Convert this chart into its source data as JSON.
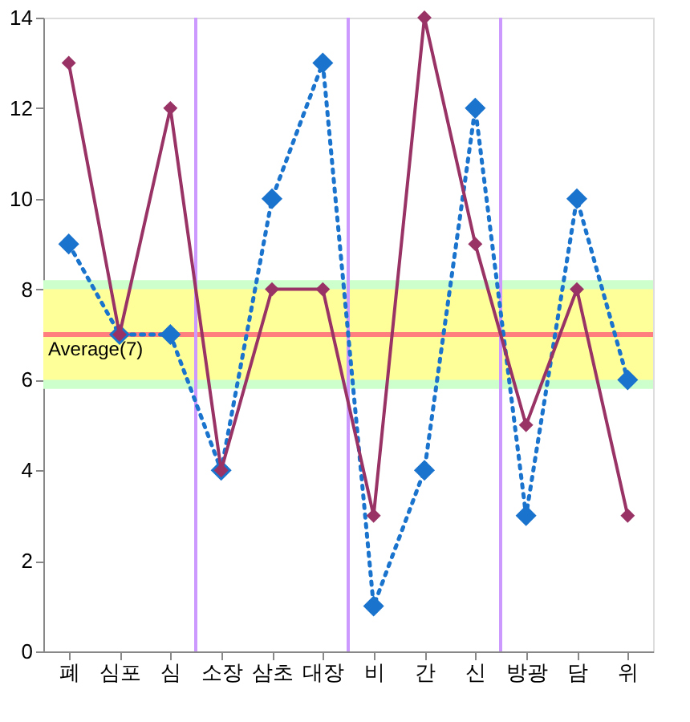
{
  "chart_data": {
    "type": "line",
    "categories": [
      "폐",
      "심포",
      "심",
      "소장",
      "삼초",
      "대장",
      "비",
      "간",
      "신",
      "방광",
      "담",
      "위"
    ],
    "series": [
      {
        "color": "#1a73cc",
        "line_style": "dotted",
        "values": [
          9,
          7,
          7,
          4,
          10,
          13,
          1,
          4,
          12,
          3,
          10,
          6
        ]
      },
      {
        "color": "#993366",
        "line_style": "solid",
        "values": [
          13,
          7,
          12,
          4,
          8,
          8,
          3,
          14,
          9,
          5,
          8,
          3
        ]
      }
    ],
    "ylim": [
      0,
      14
    ],
    "yticks": [
      0,
      2,
      4,
      6,
      8,
      10,
      12,
      14
    ],
    "marker": "diamond",
    "grid": false,
    "bands": [
      {
        "axis": "y",
        "from": 5.8,
        "to": 8.2,
        "color": "#ccffcc"
      },
      {
        "axis": "y",
        "from": 6,
        "to": 8,
        "color": "#ffff99"
      }
    ],
    "ref_lines": [
      {
        "axis": "y",
        "value": 7,
        "label": "Average(7)",
        "color": "#ff7f7f"
      }
    ]
  }
}
